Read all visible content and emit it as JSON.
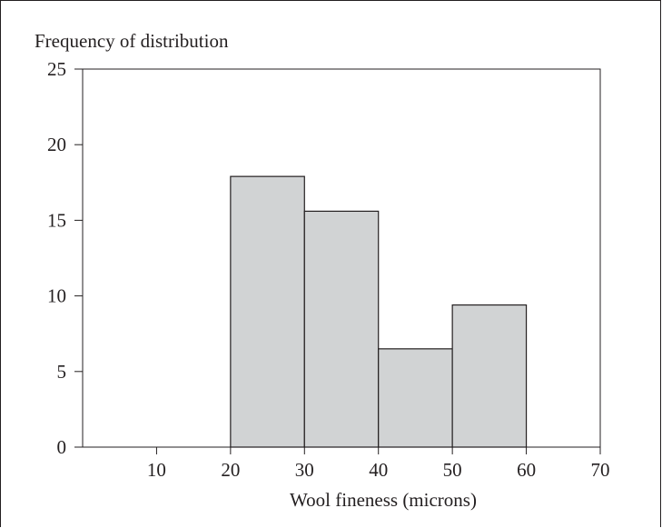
{
  "chart_data": {
    "type": "bar",
    "title": "",
    "ylabel": "Frequency of distribution",
    "xlabel": "Wool fineness (microns)",
    "xlim": [
      0,
      70
    ],
    "ylim": [
      0,
      25
    ],
    "x_ticks": [
      10,
      20,
      30,
      40,
      50,
      60,
      70
    ],
    "y_ticks": [
      0,
      5,
      10,
      15,
      20,
      25
    ],
    "bins": [
      {
        "from": 20,
        "to": 30,
        "value": 17.9
      },
      {
        "from": 30,
        "to": 40,
        "value": 15.6
      },
      {
        "from": 40,
        "to": 50,
        "value": 6.5
      },
      {
        "from": 50,
        "to": 60,
        "value": 9.4
      }
    ],
    "bar_fill": "#d1d3d4",
    "line_color": "#231f20",
    "grid": false,
    "legend": "none"
  }
}
